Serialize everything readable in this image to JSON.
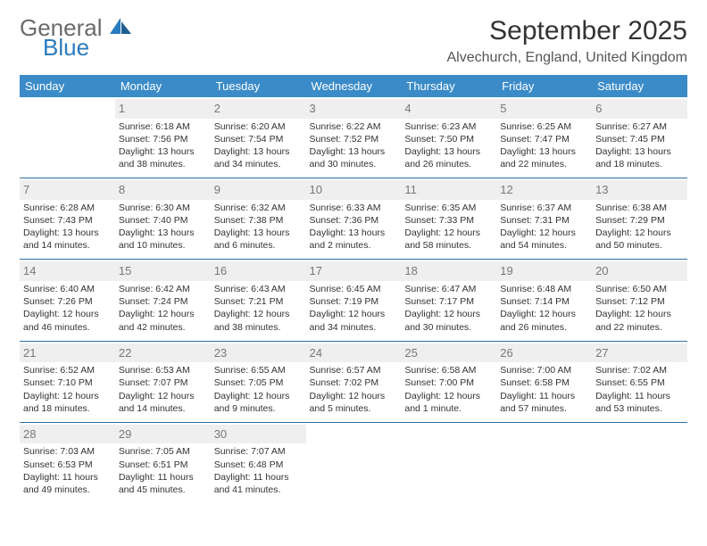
{
  "logo": {
    "word1": "General",
    "word2": "Blue"
  },
  "header": {
    "title": "September 2025",
    "location": "Alvechurch, England, United Kingdom"
  },
  "colors": {
    "header_bg": "#3b8bc8",
    "header_fg": "#ffffff",
    "row_divider": "#2f6fa3",
    "daynum_bg": "#efefef",
    "daynum_fg": "#777777",
    "logo_gray": "#6a6a6a",
    "logo_blue": "#2a7bbf"
  },
  "weekdays": [
    "Sunday",
    "Monday",
    "Tuesday",
    "Wednesday",
    "Thursday",
    "Friday",
    "Saturday"
  ],
  "weeks": [
    [
      {
        "day": "",
        "lines": []
      },
      {
        "day": "1",
        "lines": [
          "Sunrise: 6:18 AM",
          "Sunset: 7:56 PM",
          "Daylight: 13 hours and 38 minutes."
        ]
      },
      {
        "day": "2",
        "lines": [
          "Sunrise: 6:20 AM",
          "Sunset: 7:54 PM",
          "Daylight: 13 hours and 34 minutes."
        ]
      },
      {
        "day": "3",
        "lines": [
          "Sunrise: 6:22 AM",
          "Sunset: 7:52 PM",
          "Daylight: 13 hours and 30 minutes."
        ]
      },
      {
        "day": "4",
        "lines": [
          "Sunrise: 6:23 AM",
          "Sunset: 7:50 PM",
          "Daylight: 13 hours and 26 minutes."
        ]
      },
      {
        "day": "5",
        "lines": [
          "Sunrise: 6:25 AM",
          "Sunset: 7:47 PM",
          "Daylight: 13 hours and 22 minutes."
        ]
      },
      {
        "day": "6",
        "lines": [
          "Sunrise: 6:27 AM",
          "Sunset: 7:45 PM",
          "Daylight: 13 hours and 18 minutes."
        ]
      }
    ],
    [
      {
        "day": "7",
        "lines": [
          "Sunrise: 6:28 AM",
          "Sunset: 7:43 PM",
          "Daylight: 13 hours and 14 minutes."
        ]
      },
      {
        "day": "8",
        "lines": [
          "Sunrise: 6:30 AM",
          "Sunset: 7:40 PM",
          "Daylight: 13 hours and 10 minutes."
        ]
      },
      {
        "day": "9",
        "lines": [
          "Sunrise: 6:32 AM",
          "Sunset: 7:38 PM",
          "Daylight: 13 hours and 6 minutes."
        ]
      },
      {
        "day": "10",
        "lines": [
          "Sunrise: 6:33 AM",
          "Sunset: 7:36 PM",
          "Daylight: 13 hours and 2 minutes."
        ]
      },
      {
        "day": "11",
        "lines": [
          "Sunrise: 6:35 AM",
          "Sunset: 7:33 PM",
          "Daylight: 12 hours and 58 minutes."
        ]
      },
      {
        "day": "12",
        "lines": [
          "Sunrise: 6:37 AM",
          "Sunset: 7:31 PM",
          "Daylight: 12 hours and 54 minutes."
        ]
      },
      {
        "day": "13",
        "lines": [
          "Sunrise: 6:38 AM",
          "Sunset: 7:29 PM",
          "Daylight: 12 hours and 50 minutes."
        ]
      }
    ],
    [
      {
        "day": "14",
        "lines": [
          "Sunrise: 6:40 AM",
          "Sunset: 7:26 PM",
          "Daylight: 12 hours and 46 minutes."
        ]
      },
      {
        "day": "15",
        "lines": [
          "Sunrise: 6:42 AM",
          "Sunset: 7:24 PM",
          "Daylight: 12 hours and 42 minutes."
        ]
      },
      {
        "day": "16",
        "lines": [
          "Sunrise: 6:43 AM",
          "Sunset: 7:21 PM",
          "Daylight: 12 hours and 38 minutes."
        ]
      },
      {
        "day": "17",
        "lines": [
          "Sunrise: 6:45 AM",
          "Sunset: 7:19 PM",
          "Daylight: 12 hours and 34 minutes."
        ]
      },
      {
        "day": "18",
        "lines": [
          "Sunrise: 6:47 AM",
          "Sunset: 7:17 PM",
          "Daylight: 12 hours and 30 minutes."
        ]
      },
      {
        "day": "19",
        "lines": [
          "Sunrise: 6:48 AM",
          "Sunset: 7:14 PM",
          "Daylight: 12 hours and 26 minutes."
        ]
      },
      {
        "day": "20",
        "lines": [
          "Sunrise: 6:50 AM",
          "Sunset: 7:12 PM",
          "Daylight: 12 hours and 22 minutes."
        ]
      }
    ],
    [
      {
        "day": "21",
        "lines": [
          "Sunrise: 6:52 AM",
          "Sunset: 7:10 PM",
          "Daylight: 12 hours and 18 minutes."
        ]
      },
      {
        "day": "22",
        "lines": [
          "Sunrise: 6:53 AM",
          "Sunset: 7:07 PM",
          "Daylight: 12 hours and 14 minutes."
        ]
      },
      {
        "day": "23",
        "lines": [
          "Sunrise: 6:55 AM",
          "Sunset: 7:05 PM",
          "Daylight: 12 hours and 9 minutes."
        ]
      },
      {
        "day": "24",
        "lines": [
          "Sunrise: 6:57 AM",
          "Sunset: 7:02 PM",
          "Daylight: 12 hours and 5 minutes."
        ]
      },
      {
        "day": "25",
        "lines": [
          "Sunrise: 6:58 AM",
          "Sunset: 7:00 PM",
          "Daylight: 12 hours and 1 minute."
        ]
      },
      {
        "day": "26",
        "lines": [
          "Sunrise: 7:00 AM",
          "Sunset: 6:58 PM",
          "Daylight: 11 hours and 57 minutes."
        ]
      },
      {
        "day": "27",
        "lines": [
          "Sunrise: 7:02 AM",
          "Sunset: 6:55 PM",
          "Daylight: 11 hours and 53 minutes."
        ]
      }
    ],
    [
      {
        "day": "28",
        "lines": [
          "Sunrise: 7:03 AM",
          "Sunset: 6:53 PM",
          "Daylight: 11 hours and 49 minutes."
        ]
      },
      {
        "day": "29",
        "lines": [
          "Sunrise: 7:05 AM",
          "Sunset: 6:51 PM",
          "Daylight: 11 hours and 45 minutes."
        ]
      },
      {
        "day": "30",
        "lines": [
          "Sunrise: 7:07 AM",
          "Sunset: 6:48 PM",
          "Daylight: 11 hours and 41 minutes."
        ]
      },
      {
        "day": "",
        "lines": []
      },
      {
        "day": "",
        "lines": []
      },
      {
        "day": "",
        "lines": []
      },
      {
        "day": "",
        "lines": []
      }
    ]
  ]
}
